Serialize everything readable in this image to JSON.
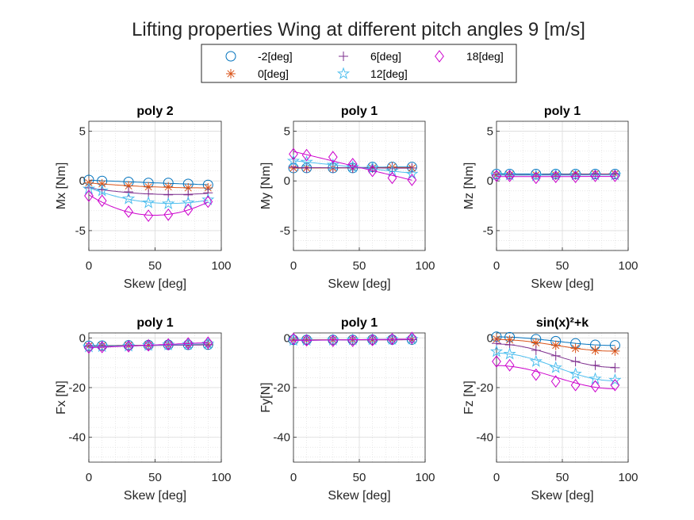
{
  "figure_title": "Lifting properties Wing at different pitch angles 9 [m/s]",
  "colors": {
    "-2[deg]": "#0072bd",
    "0[deg]": "#d95319",
    "6[deg]": "#7e2f8e",
    "12[deg]": "#4dbeee",
    "18[deg]": "#cc00cc"
  },
  "legend": {
    "entries": [
      {
        "label": "-2[deg]",
        "marker": "circle"
      },
      {
        "label": "0[deg]",
        "marker": "asterisk"
      },
      {
        "label": "6[deg]",
        "marker": "plus"
      },
      {
        "label": "12[deg]",
        "marker": "pentagram"
      },
      {
        "label": "18[deg]",
        "marker": "diamond"
      }
    ]
  },
  "chart_data": [
    {
      "type": "scatter",
      "title": "poly 2",
      "xlabel": "Skew [deg]",
      "ylabel": "Mx [Nm]",
      "xlim": [
        0,
        100
      ],
      "ylim": [
        -7,
        6
      ],
      "xticks": [
        0,
        50,
        100
      ],
      "yticks": [
        5,
        0,
        -5
      ],
      "grid": true,
      "x": [
        0,
        10,
        30,
        45,
        60,
        75,
        90
      ],
      "series": [
        {
          "name": "-2[deg]",
          "values": [
            0.1,
            0.0,
            -0.1,
            -0.2,
            -0.2,
            -0.3,
            -0.4
          ]
        },
        {
          "name": "0[deg]",
          "values": [
            -0.2,
            -0.3,
            -0.5,
            -0.6,
            -0.6,
            -0.7,
            -0.7
          ]
        },
        {
          "name": "6[deg]",
          "values": [
            -0.7,
            -0.9,
            -1.1,
            -1.3,
            -1.4,
            -1.4,
            -1.2
          ]
        },
        {
          "name": "12[deg]",
          "values": [
            -0.8,
            -1.0,
            -1.8,
            -2.2,
            -2.3,
            -2.2,
            -1.9
          ]
        },
        {
          "name": "18[deg]",
          "values": [
            -1.5,
            -2.0,
            -3.1,
            -3.5,
            -3.4,
            -2.9,
            -2.1
          ]
        }
      ]
    },
    {
      "type": "scatter",
      "title": "poly 1",
      "xlabel": "Skew [deg]",
      "ylabel": "My [Nm]",
      "xlim": [
        0,
        100
      ],
      "ylim": [
        -7,
        6
      ],
      "xticks": [
        0,
        50,
        100
      ],
      "yticks": [
        5,
        0,
        -5
      ],
      "grid": true,
      "x": [
        0,
        10,
        30,
        45,
        60,
        75,
        90
      ],
      "series": [
        {
          "name": "-2[deg]",
          "values": [
            1.3,
            1.3,
            1.3,
            1.3,
            1.4,
            1.4,
            1.4
          ]
        },
        {
          "name": "0[deg]",
          "values": [
            1.3,
            1.3,
            1.3,
            1.3,
            1.3,
            1.4,
            1.3
          ]
        },
        {
          "name": "6[deg]",
          "values": [
            1.4,
            1.3,
            1.3,
            1.3,
            1.3,
            1.3,
            1.3
          ]
        },
        {
          "name": "12[deg]",
          "values": [
            2.0,
            1.9,
            1.6,
            1.4,
            1.3,
            1.0,
            0.7
          ]
        },
        {
          "name": "18[deg]",
          "values": [
            2.7,
            2.6,
            2.4,
            1.7,
            1.0,
            0.3,
            0.1
          ]
        }
      ]
    },
    {
      "type": "scatter",
      "title": "poly 1",
      "xlabel": "Skew [deg]",
      "ylabel": "Mz [Nm]",
      "xlim": [
        0,
        100
      ],
      "ylim": [
        -7,
        6
      ],
      "xticks": [
        0,
        50,
        100
      ],
      "yticks": [
        5,
        0,
        -5
      ],
      "grid": true,
      "x": [
        0,
        10,
        30,
        45,
        60,
        75,
        90
      ],
      "series": [
        {
          "name": "-2[deg]",
          "values": [
            0.7,
            0.7,
            0.7,
            0.7,
            0.7,
            0.7,
            0.7
          ]
        },
        {
          "name": "0[deg]",
          "values": [
            0.6,
            0.6,
            0.6,
            0.6,
            0.7,
            0.7,
            0.7
          ]
        },
        {
          "name": "6[deg]",
          "values": [
            0.6,
            0.6,
            0.6,
            0.6,
            0.6,
            0.7,
            0.7
          ]
        },
        {
          "name": "12[deg]",
          "values": [
            0.6,
            0.6,
            0.5,
            0.6,
            0.6,
            0.6,
            0.6
          ]
        },
        {
          "name": "18[deg]",
          "values": [
            0.5,
            0.5,
            0.3,
            0.4,
            0.4,
            0.5,
            0.5
          ]
        }
      ]
    },
    {
      "type": "scatter",
      "title": "poly 1",
      "xlabel": "Skew [deg]",
      "ylabel": "Fx [N]",
      "xlim": [
        0,
        100
      ],
      "ylim": [
        -50,
        2
      ],
      "xticks": [
        0,
        50,
        100
      ],
      "yticks": [
        0,
        -20,
        -40
      ],
      "grid": true,
      "x": [
        0,
        10,
        30,
        45,
        60,
        75,
        90
      ],
      "series": [
        {
          "name": "-2[deg]",
          "values": [
            -3.2,
            -3.1,
            -3.0,
            -2.9,
            -2.8,
            -2.8,
            -2.7
          ]
        },
        {
          "name": "0[deg]",
          "values": [
            -3.3,
            -3.2,
            -3.1,
            -3.0,
            -2.9,
            -2.8,
            -2.7
          ]
        },
        {
          "name": "6[deg]",
          "values": [
            -3.4,
            -3.3,
            -3.2,
            -3.1,
            -3.0,
            -2.9,
            -2.8
          ]
        },
        {
          "name": "12[deg]",
          "values": [
            -3.6,
            -3.5,
            -3.3,
            -3.0,
            -2.8,
            -2.6,
            -2.4
          ]
        },
        {
          "name": "18[deg]",
          "values": [
            -3.9,
            -3.7,
            -3.4,
            -3.0,
            -2.6,
            -2.2,
            -1.9
          ]
        }
      ]
    },
    {
      "type": "scatter",
      "title": "poly 1",
      "xlabel": "Skew [deg]",
      "ylabel": "Fy[N]",
      "xlim": [
        0,
        100
      ],
      "ylim": [
        -50,
        2
      ],
      "xticks": [
        0,
        50,
        100
      ],
      "yticks": [
        0,
        -20,
        -40
      ],
      "grid": true,
      "x": [
        0,
        10,
        30,
        45,
        60,
        75,
        90
      ],
      "series": [
        {
          "name": "-2[deg]",
          "values": [
            -0.8,
            -0.8,
            -0.8,
            -0.8,
            -0.7,
            -0.7,
            -0.7
          ]
        },
        {
          "name": "0[deg]",
          "values": [
            -0.8,
            -0.8,
            -0.8,
            -0.8,
            -0.8,
            -0.7,
            -0.7
          ]
        },
        {
          "name": "6[deg]",
          "values": [
            -0.9,
            -0.9,
            -0.9,
            -0.8,
            -0.8,
            -0.8,
            -0.7
          ]
        },
        {
          "name": "12[deg]",
          "values": [
            -1.0,
            -1.0,
            -0.9,
            -0.8,
            -0.7,
            -0.6,
            -0.5
          ]
        },
        {
          "name": "18[deg]",
          "values": [
            -0.4,
            -1.0,
            -1.2,
            -1.2,
            -0.9,
            -0.5,
            0.0
          ]
        }
      ]
    },
    {
      "type": "scatter",
      "title": "sin(x)²+k",
      "xlabel": "Skew [deg]",
      "ylabel": "Fz [N]",
      "xlim": [
        0,
        100
      ],
      "ylim": [
        -50,
        2
      ],
      "xticks": [
        0,
        50,
        100
      ],
      "yticks": [
        0,
        -20,
        -40
      ],
      "grid": true,
      "x": [
        0,
        10,
        30,
        45,
        60,
        75,
        90
      ],
      "series": [
        {
          "name": "-2[deg]",
          "values": [
            0.5,
            0.3,
            -0.5,
            -1.3,
            -2.2,
            -2.8,
            -3.0
          ]
        },
        {
          "name": "0[deg]",
          "values": [
            -0.5,
            -0.8,
            -2.0,
            -3.0,
            -4.2,
            -5.0,
            -5.3
          ]
        },
        {
          "name": "6[deg]",
          "values": [
            -2.2,
            -2.8,
            -5.0,
            -7.2,
            -9.5,
            -11.0,
            -12.0
          ]
        },
        {
          "name": "12[deg]",
          "values": [
            -5.5,
            -6.5,
            -9.5,
            -12.0,
            -14.5,
            -16.5,
            -17.0
          ]
        },
        {
          "name": "18[deg]",
          "values": [
            -9.5,
            -11.0,
            -14.8,
            -17.5,
            -19.0,
            -19.5,
            -19.0
          ]
        }
      ]
    }
  ]
}
